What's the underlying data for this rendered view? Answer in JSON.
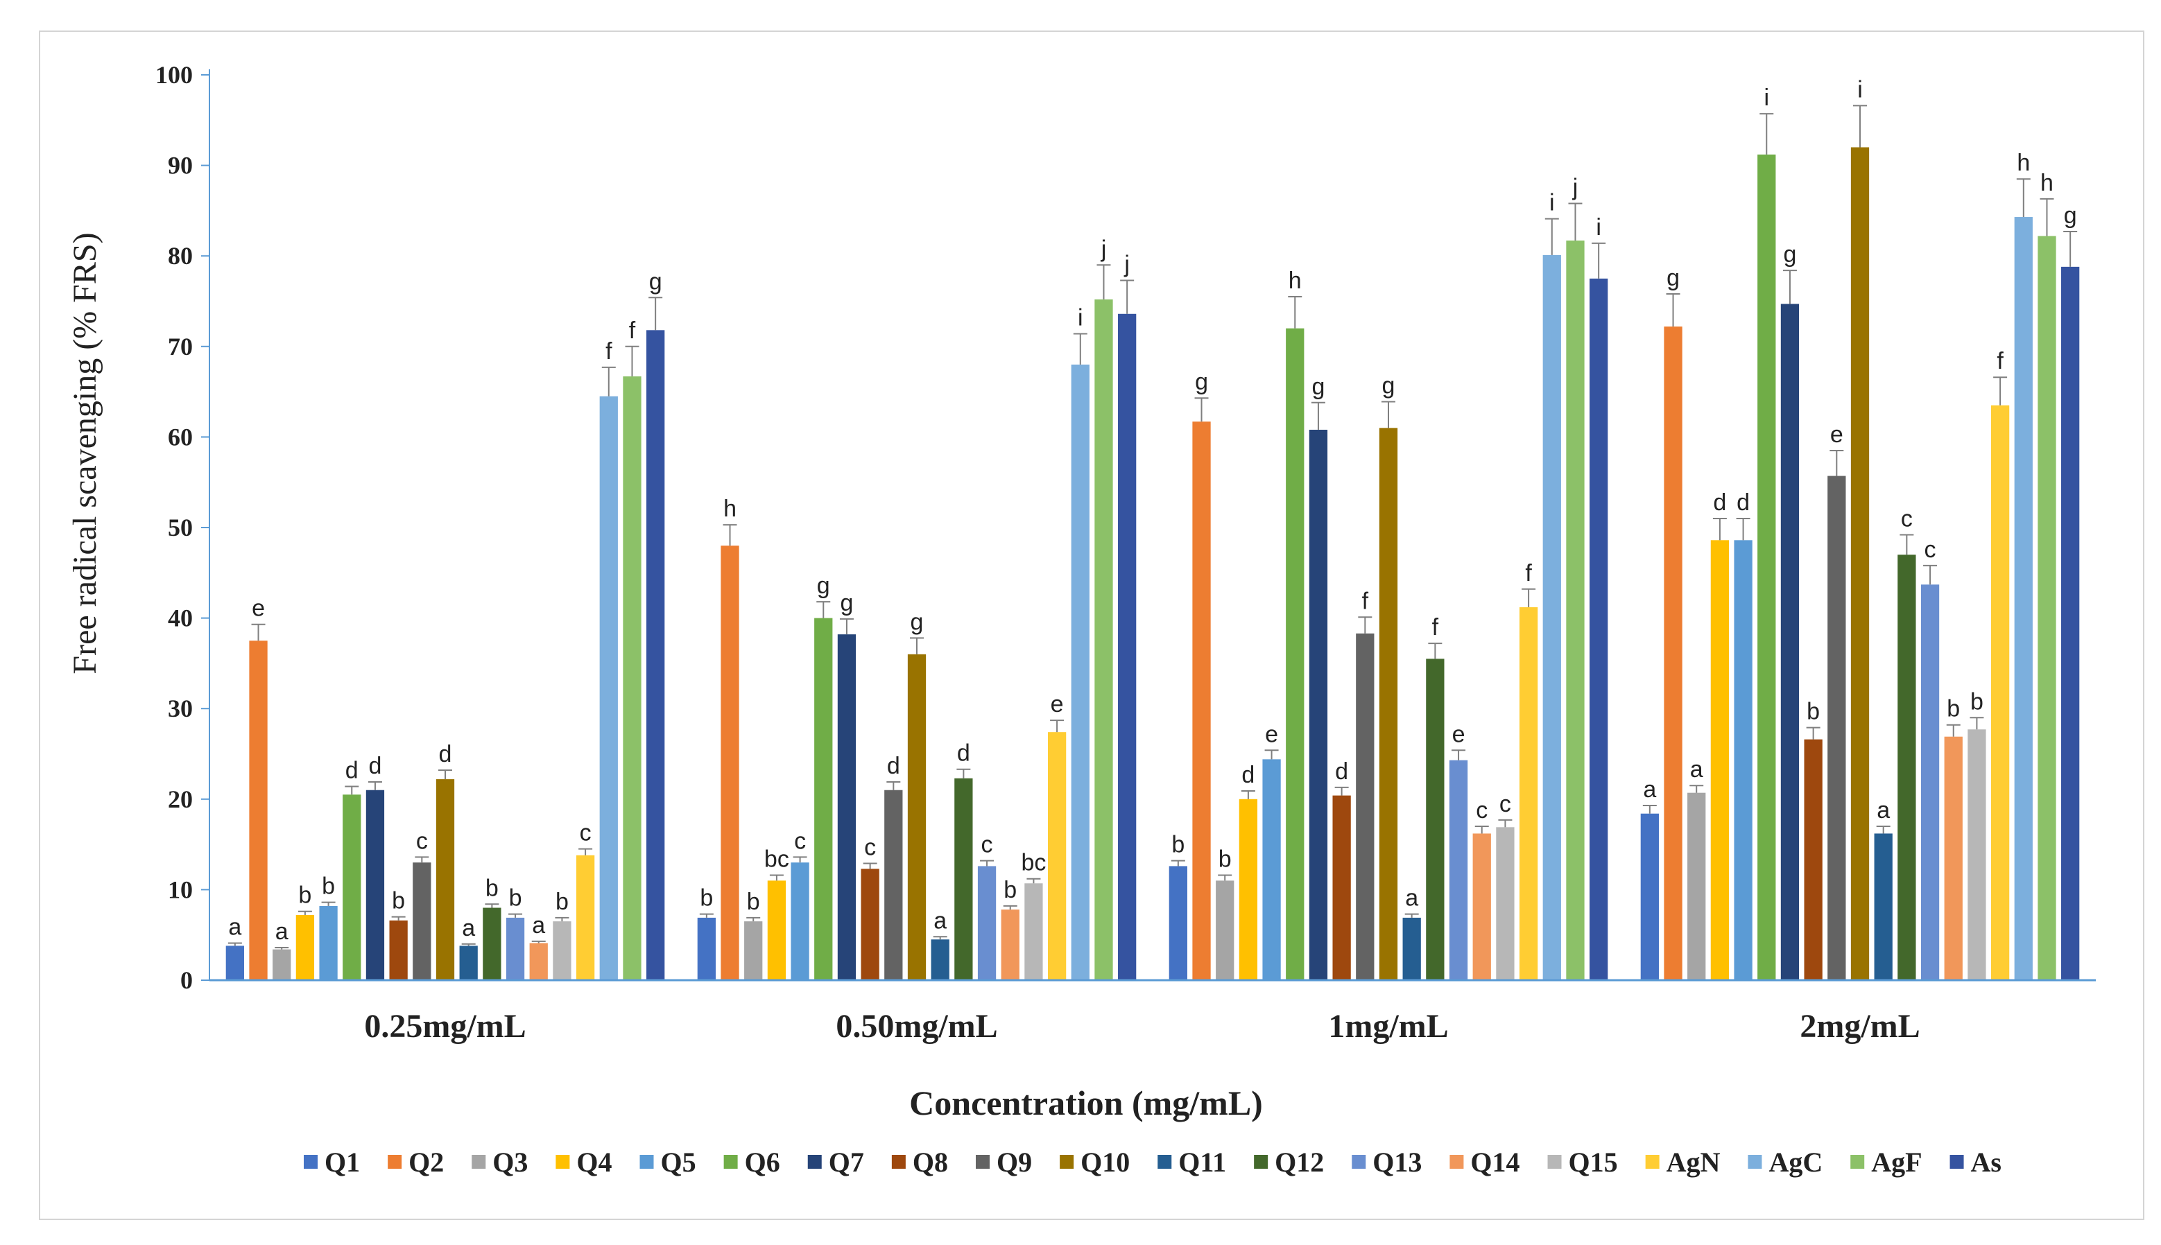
{
  "chart_data": {
    "type": "bar",
    "title": "",
    "xlabel": "Concentration (mg/mL)",
    "ylabel": "Free radical scavenging (% FRS)",
    "ylim": [
      0,
      100
    ],
    "yticks": [
      0,
      10,
      20,
      30,
      40,
      50,
      60,
      70,
      80,
      90,
      100
    ],
    "categories": [
      "0.25mg/mL",
      "0.50mg/mL",
      "1mg/mL",
      "2mg/mL"
    ],
    "legend_position": "bottom",
    "series": [
      {
        "name": "Q1",
        "color": "#4472c4",
        "values": [
          3.8,
          6.9,
          12.6,
          18.4
        ],
        "errors": [
          0.3,
          0.4,
          0.6,
          0.9
        ],
        "labels": [
          "a",
          "b",
          "b",
          "a"
        ]
      },
      {
        "name": "Q2",
        "color": "#ed7d31",
        "values": [
          37.5,
          48.0,
          61.7,
          72.2
        ],
        "errors": [
          1.8,
          2.3,
          2.6,
          3.6
        ],
        "labels": [
          "e",
          "h",
          "g",
          "g"
        ]
      },
      {
        "name": "Q3",
        "color": "#a5a5a5",
        "values": [
          3.4,
          6.5,
          11.0,
          20.7
        ],
        "errors": [
          0.2,
          0.4,
          0.6,
          0.8
        ],
        "labels": [
          "a",
          "b",
          "b",
          "a"
        ]
      },
      {
        "name": "Q4",
        "color": "#ffc000",
        "values": [
          7.2,
          11.0,
          20.0,
          48.6
        ],
        "errors": [
          0.4,
          0.6,
          0.9,
          2.4
        ],
        "labels": [
          "b",
          "bc",
          "d",
          "d"
        ]
      },
      {
        "name": "Q5",
        "color": "#5b9bd5",
        "values": [
          8.2,
          13.0,
          24.4,
          48.6
        ],
        "errors": [
          0.4,
          0.6,
          1.0,
          2.4
        ],
        "labels": [
          "b",
          "c",
          "e",
          "d"
        ]
      },
      {
        "name": "Q6",
        "color": "#70ad47",
        "values": [
          20.5,
          40.0,
          72.0,
          91.2
        ],
        "errors": [
          0.9,
          1.8,
          3.5,
          4.5
        ],
        "labels": [
          "d",
          "g",
          "h",
          "i"
        ]
      },
      {
        "name": "Q7",
        "color": "#264478",
        "values": [
          21.0,
          38.2,
          60.8,
          74.7
        ],
        "errors": [
          0.9,
          1.7,
          3.0,
          3.7
        ],
        "labels": [
          "d",
          "g",
          "g",
          "g"
        ]
      },
      {
        "name": "Q8",
        "color": "#9e480e",
        "values": [
          6.6,
          12.3,
          20.4,
          26.6
        ],
        "errors": [
          0.4,
          0.6,
          0.9,
          1.3
        ],
        "labels": [
          "b",
          "c",
          "d",
          "b"
        ]
      },
      {
        "name": "Q9",
        "color": "#636363",
        "values": [
          13.0,
          21.0,
          38.3,
          55.7
        ],
        "errors": [
          0.6,
          0.9,
          1.8,
          2.8
        ],
        "labels": [
          "c",
          "d",
          "f",
          "e"
        ]
      },
      {
        "name": "Q10",
        "color": "#997300",
        "values": [
          22.2,
          36.0,
          61.0,
          92.0
        ],
        "errors": [
          1.0,
          1.8,
          2.9,
          4.6
        ],
        "labels": [
          "d",
          "g",
          "g",
          "i"
        ]
      },
      {
        "name": "Q11",
        "color": "#255e91",
        "values": [
          3.8,
          4.5,
          6.9,
          16.2
        ],
        "errors": [
          0.2,
          0.3,
          0.4,
          0.8
        ],
        "labels": [
          "a",
          "a",
          "a",
          "a"
        ]
      },
      {
        "name": "Q12",
        "color": "#43682b",
        "values": [
          8.0,
          22.3,
          35.5,
          47.0
        ],
        "errors": [
          0.4,
          1.0,
          1.7,
          2.2
        ],
        "labels": [
          "b",
          "d",
          "f",
          "c"
        ]
      },
      {
        "name": "Q13",
        "color": "#698ed0",
        "values": [
          6.9,
          12.6,
          24.3,
          43.7
        ],
        "errors": [
          0.4,
          0.6,
          1.1,
          2.1
        ],
        "labels": [
          "b",
          "c",
          "e",
          "c"
        ]
      },
      {
        "name": "Q14",
        "color": "#f1975a",
        "values": [
          4.1,
          7.8,
          16.2,
          26.9
        ],
        "errors": [
          0.2,
          0.4,
          0.8,
          1.3
        ],
        "labels": [
          "a",
          "b",
          "c",
          "b"
        ]
      },
      {
        "name": "Q15",
        "color": "#b7b7b7",
        "values": [
          6.5,
          10.7,
          16.9,
          27.7
        ],
        "errors": [
          0.4,
          0.5,
          0.8,
          1.3
        ],
        "labels": [
          "b",
          "bc",
          "c",
          "b"
        ]
      },
      {
        "name": "AgN",
        "color": "#ffcd33",
        "values": [
          13.8,
          27.4,
          41.2,
          63.5
        ],
        "errors": [
          0.7,
          1.3,
          2.0,
          3.1
        ],
        "labels": [
          "c",
          "e",
          "f",
          "f"
        ]
      },
      {
        "name": "AgC",
        "color": "#7cafdd",
        "values": [
          64.5,
          68.0,
          80.1,
          84.3
        ],
        "errors": [
          3.2,
          3.4,
          4.0,
          4.2
        ],
        "labels": [
          "f",
          "i",
          "i",
          "h"
        ]
      },
      {
        "name": "AgF",
        "color": "#8cc168",
        "values": [
          66.7,
          75.2,
          81.7,
          82.2
        ],
        "errors": [
          3.3,
          3.8,
          4.1,
          4.1
        ],
        "labels": [
          "f",
          "j",
          "j",
          "h"
        ]
      },
      {
        "name": "As",
        "color": "#3553a0",
        "values": [
          71.8,
          73.6,
          77.5,
          78.8
        ],
        "errors": [
          3.6,
          3.7,
          3.9,
          3.9
        ],
        "labels": [
          "g",
          "j",
          "i",
          "g"
        ]
      }
    ]
  }
}
